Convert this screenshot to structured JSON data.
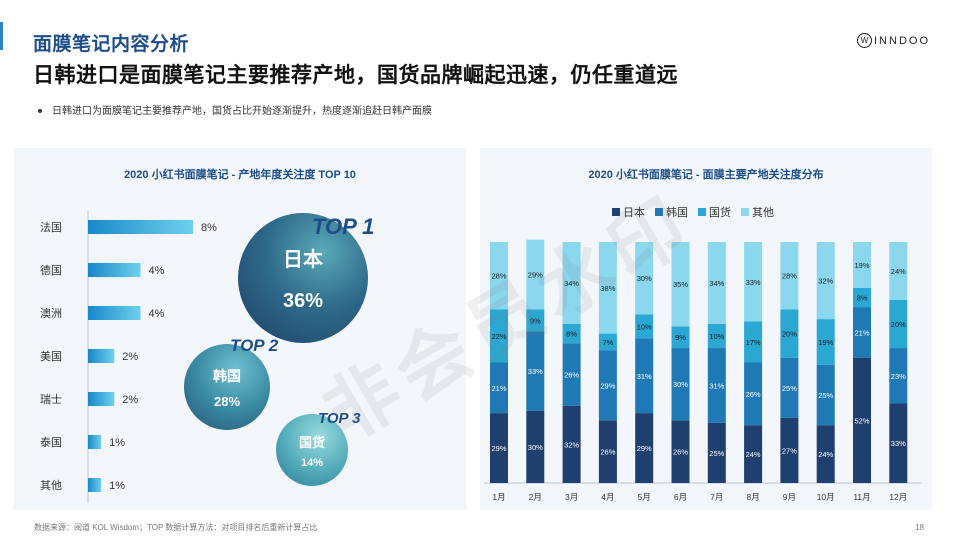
{
  "header": {
    "title": "面膜笔记内容分析",
    "subtitle": "日韩进口是面膜笔记主要推荐产地，国货品牌崛起迅速，仍任重道远",
    "logo_text": "INNDOO",
    "logo_mark": "W"
  },
  "bullet_text": "日韩进口为面膜笔记主要推荐产地，国货占比开始逐渐提升，热度逐渐追赶日韩产面膜",
  "top_bubbles": [
    {
      "rank": "TOP 1",
      "name": "日本",
      "value": "36%"
    },
    {
      "rank": "TOP 2",
      "name": "韩国",
      "value": "28%"
    },
    {
      "rank": "TOP 3",
      "name": "国货",
      "value": "14%"
    }
  ],
  "watermark": "非会员水印",
  "footer": {
    "source": "数据来源：阅道 KOL Wisdom；TOP 数据计算方法：对项目排名后重新计算占比",
    "page_number": "18"
  },
  "colors": {
    "japan": "#1f3f6e",
    "korea": "#1f79b5",
    "domestic": "#2ba7d3",
    "other": "#8ad7ee",
    "bar_start": "#1a87c8",
    "bar_end": "#6fd0ee"
  },
  "chart_data": [
    {
      "type": "bar",
      "orientation": "horizontal",
      "title": "2020 小红书面膜笔记 - 产地年度关注度 TOP 10",
      "categories": [
        "法国",
        "德国",
        "澳洲",
        "美国",
        "瑞士",
        "泰国",
        "其他"
      ],
      "values": [
        8,
        4,
        4,
        2,
        2,
        1,
        1
      ],
      "value_labels": [
        "8%",
        "4%",
        "4%",
        "2%",
        "2%",
        "1%",
        "1%"
      ],
      "xlim": [
        0,
        8
      ]
    },
    {
      "type": "bar",
      "stacked": "100%",
      "title": "2020 小红书面膜笔记 - 面膜主要产地关注度分布",
      "categories": [
        "1月",
        "2月",
        "3月",
        "4月",
        "5月",
        "6月",
        "7月",
        "8月",
        "9月",
        "10月",
        "11月",
        "12月"
      ],
      "legend_position": "top",
      "series": [
        {
          "name": "日本",
          "values": [
            29,
            30,
            32,
            26,
            29,
            26,
            25,
            24,
            27,
            24,
            52,
            33
          ],
          "labels": [
            "29%",
            "30%",
            "32%",
            "26%",
            "29%",
            "26%",
            "25%",
            "24%",
            "27%",
            "24%",
            "52%",
            "33%"
          ]
        },
        {
          "name": "韩国",
          "values": [
            21,
            33,
            26,
            29,
            31,
            30,
            31,
            26,
            25,
            25,
            21,
            23
          ],
          "labels": [
            "21%",
            "33%",
            "26%",
            "29%",
            "31%",
            "30%",
            "31%",
            "26%",
            "25%",
            "25%",
            "21%",
            "23%"
          ]
        },
        {
          "name": "国货",
          "values": [
            22,
            9,
            8,
            7,
            10,
            9,
            10,
            17,
            20,
            19,
            8,
            20
          ],
          "labels": [
            "22%",
            "9%",
            "8%",
            "7%",
            "10%",
            "9%",
            "10%",
            "17%",
            "20%",
            "19%",
            "8%",
            "20%"
          ]
        },
        {
          "name": "其他",
          "values": [
            28,
            29,
            34,
            38,
            30,
            35,
            34,
            33,
            28,
            32,
            19,
            24
          ],
          "labels": [
            "28%",
            "29%",
            "34%",
            "38%",
            "30%",
            "35%",
            "34%",
            "33%",
            "28%",
            "32%",
            "19%",
            "24%"
          ]
        }
      ],
      "ylim": [
        0,
        100
      ]
    }
  ]
}
